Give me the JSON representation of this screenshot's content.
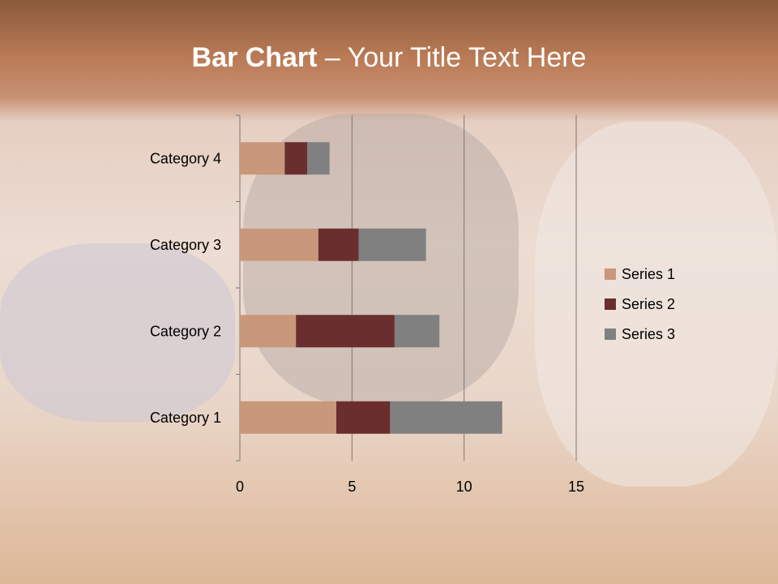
{
  "slide": {
    "title_bold": "Bar Chart",
    "title_rest": " – Your Title Text Here"
  },
  "chart_data": {
    "type": "bar",
    "orientation": "horizontal",
    "stacked": true,
    "categories": [
      "Category 1",
      "Category 2",
      "Category 3",
      "Category 4"
    ],
    "series": [
      {
        "name": "Series 1",
        "values": [
          4.3,
          2.5,
          3.5,
          2.0
        ],
        "color": "#C9977A"
      },
      {
        "name": "Series 2",
        "values": [
          2.4,
          4.4,
          1.8,
          1.0
        ],
        "color": "#6A2E2F"
      },
      {
        "name": "Series 3",
        "values": [
          5.0,
          2.0,
          3.0,
          1.0
        ],
        "color": "#808080"
      }
    ],
    "xlim": [
      0,
      15
    ],
    "xticks": [
      "0",
      "5",
      "10",
      "15"
    ],
    "grid": true,
    "legend": "right"
  }
}
